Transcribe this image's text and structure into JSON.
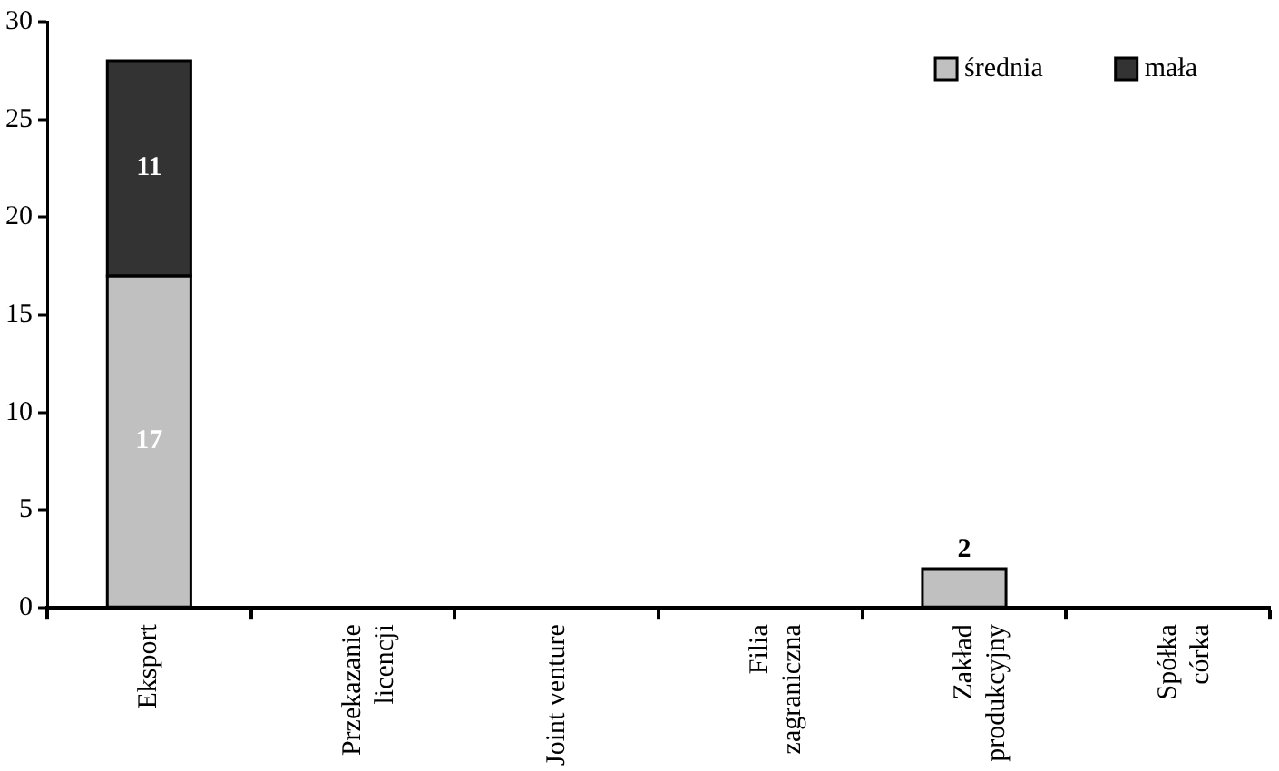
{
  "chart_data": {
    "type": "bar",
    "stacked": true,
    "categories": [
      "Eksport",
      "Przekazanie\nlicencji",
      "Joint venture",
      "Filia\nzagraniczna",
      "Zakład\nprodukcyjny",
      "Spółka\ncórka"
    ],
    "series": [
      {
        "name": "średnia",
        "color": "#c0c0c0",
        "values": [
          17,
          0,
          0,
          0,
          2,
          0
        ],
        "value_labels": [
          "17",
          null,
          null,
          null,
          "2",
          null
        ]
      },
      {
        "name": "mała",
        "color": "#333333",
        "values": [
          11,
          0,
          0,
          0,
          0,
          0
        ],
        "value_labels": [
          "11",
          null,
          null,
          null,
          null,
          null
        ]
      }
    ],
    "ylim": [
      0,
      30
    ],
    "yticks": [
      0,
      5,
      10,
      15,
      20,
      25,
      30
    ],
    "grid": false,
    "legend": "top right"
  }
}
